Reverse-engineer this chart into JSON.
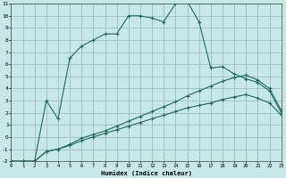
{
  "xlabel": "Humidex (Indice chaleur)",
  "bg_color": "#c8e8e8",
  "grid_color": "#9bbfbf",
  "line_color": "#1f6b5a",
  "xlim": [
    0,
    23
  ],
  "ylim": [
    -2,
    11
  ],
  "xticks": [
    0,
    1,
    2,
    3,
    4,
    5,
    6,
    7,
    8,
    9,
    10,
    11,
    12,
    13,
    14,
    15,
    16,
    17,
    18,
    19,
    20,
    21,
    22,
    23
  ],
  "yticks": [
    -2,
    -1,
    0,
    1,
    2,
    3,
    4,
    5,
    6,
    7,
    8,
    9,
    10,
    11
  ],
  "curve1_x": [
    0,
    1,
    2,
    3,
    4,
    5,
    6,
    7,
    8,
    9,
    10,
    11,
    12,
    13,
    14,
    15,
    16,
    17,
    18,
    19,
    20,
    21,
    22,
    23
  ],
  "curve1_y": [
    -2,
    -2,
    -2,
    3,
    1.5,
    6.5,
    7.5,
    8,
    8.5,
    8.5,
    10,
    10,
    9.8,
    9.5,
    11,
    11.2,
    9.5,
    5.7,
    5.8,
    5.2,
    4.8,
    4.5,
    3.8,
    2.0
  ],
  "curve2_x": [
    0,
    1,
    2,
    3,
    4,
    5,
    6,
    7,
    8,
    9,
    10,
    11,
    12,
    13,
    14,
    15,
    16,
    17,
    18,
    19,
    20,
    21,
    22,
    23
  ],
  "curve2_y": [
    -2,
    -2,
    -2,
    -1.2,
    -1.0,
    -0.7,
    -0.3,
    0.0,
    0.3,
    0.6,
    0.9,
    1.2,
    1.5,
    1.8,
    2.1,
    2.4,
    2.6,
    2.8,
    3.1,
    3.3,
    3.5,
    3.2,
    2.8,
    1.8
  ],
  "curve3_x": [
    0,
    1,
    2,
    3,
    4,
    5,
    6,
    7,
    8,
    9,
    10,
    11,
    12,
    13,
    14,
    15,
    16,
    17,
    18,
    19,
    20,
    21,
    22,
    23
  ],
  "curve3_y": [
    -2,
    -2,
    -2,
    -1.2,
    -1.0,
    -0.6,
    -0.1,
    0.2,
    0.5,
    0.9,
    1.3,
    1.7,
    2.1,
    2.5,
    2.9,
    3.4,
    3.8,
    4.2,
    4.6,
    4.9,
    5.1,
    4.7,
    4.0,
    2.2
  ]
}
